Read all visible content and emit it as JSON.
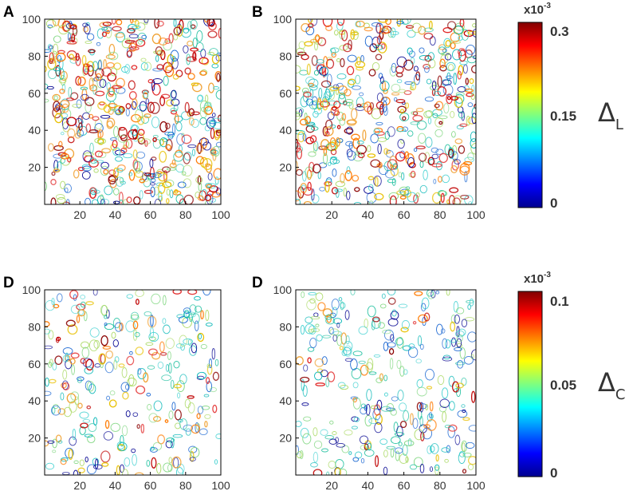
{
  "figure": {
    "colorbars": [
      {
        "id": "top",
        "exponent_base": "x10",
        "exponent_power": "-3",
        "ticks": [
          "0.3",
          "0.15",
          "0"
        ],
        "tick_values": [
          0.3,
          0.15,
          0
        ],
        "range": [
          0,
          0.3
        ],
        "symbol": "Δ",
        "symbol_sub": "L"
      },
      {
        "id": "bottom",
        "exponent_base": "x10",
        "exponent_power": "-3",
        "ticks": [
          "0.1",
          "0.05",
          "0"
        ],
        "tick_values": [
          0.1,
          0.05,
          0
        ],
        "range": [
          0,
          0.1
        ],
        "symbol": "Δ",
        "symbol_sub": "C"
      }
    ],
    "colormap": "jet"
  },
  "chart_data": [
    {
      "type": "heatmap",
      "panel": "A",
      "subtype": "contour",
      "x_ticks": [
        "20",
        "40",
        "60",
        "80",
        "100"
      ],
      "y_ticks": [
        "20",
        "40",
        "60",
        "80",
        "100"
      ],
      "xlim": [
        0,
        100
      ],
      "ylim": [
        0,
        100
      ],
      "grid": false,
      "colorbar": "top",
      "density": 0.62,
      "warm_bias": 0.85,
      "seed": 11
    },
    {
      "type": "heatmap",
      "panel": "B",
      "subtype": "contour",
      "x_ticks": [
        "20",
        "40",
        "60",
        "80",
        "100"
      ],
      "y_ticks": [
        "20",
        "40",
        "60",
        "80",
        "100"
      ],
      "xlim": [
        0,
        100
      ],
      "ylim": [
        0,
        100
      ],
      "grid": false,
      "colorbar": "top",
      "density": 0.58,
      "warm_bias": 0.7,
      "seed": 23
    },
    {
      "type": "heatmap",
      "panel": "D",
      "subtype": "contour",
      "x_ticks": [
        "20",
        "40",
        "60",
        "80",
        "100"
      ],
      "y_ticks": [
        "20",
        "40",
        "60",
        "80",
        "100"
      ],
      "xlim": [
        0,
        100
      ],
      "ylim": [
        0,
        100
      ],
      "grid": false,
      "colorbar": "bottom",
      "density": 0.32,
      "warm_bias": 0.45,
      "seed": 37
    },
    {
      "type": "heatmap",
      "panel": "D",
      "subtype": "contour",
      "x_ticks": [
        "20",
        "40",
        "60",
        "80",
        "100"
      ],
      "y_ticks": [
        "20",
        "40",
        "60",
        "80",
        "100"
      ],
      "xlim": [
        0,
        100
      ],
      "ylim": [
        0,
        100
      ],
      "grid": false,
      "colorbar": "bottom",
      "density": 0.34,
      "warm_bias": 0.25,
      "seed": 53
    }
  ]
}
